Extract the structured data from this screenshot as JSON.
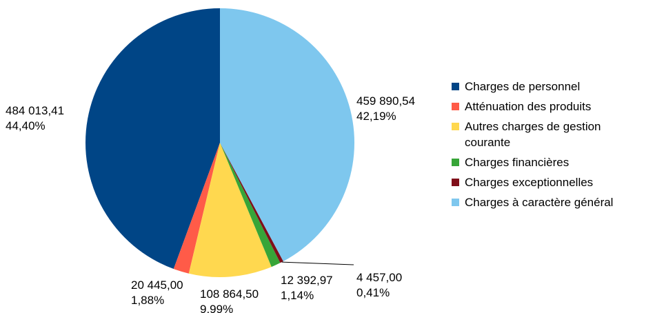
{
  "chart_data": {
    "type": "pie",
    "title": "",
    "legend_position": "right",
    "slices": [
      {
        "name": "Charges de personnel",
        "value": 484013.41,
        "value_label": "484 013,41",
        "percent_label": "44,40%",
        "color": "#004586"
      },
      {
        "name": "Atténuation des produits",
        "value": 20445.0,
        "value_label": "20 445,00",
        "percent_label": "1,88%",
        "color": "#ff5b48"
      },
      {
        "name": "Autres charges de gestion courante",
        "value": 108864.5,
        "value_label": "108 864,50",
        "percent_label": "9,99%",
        "color": "#ffd84f"
      },
      {
        "name": "Charges financières",
        "value": 12392.97,
        "value_label": "12 392,97",
        "percent_label": "1,14%",
        "color": "#37a538"
      },
      {
        "name": "Charges exceptionnelles",
        "value": 4457.0,
        "value_label": "4 457,00",
        "percent_label": "0,41%",
        "color": "#800f1a"
      },
      {
        "name": "Charges à caractère général",
        "value": 459890.54,
        "value_label": "459 890,54",
        "percent_label": "42,19%",
        "color": "#7ec7ee"
      }
    ],
    "legend": [
      {
        "lines": [
          "Charges de personnel"
        ],
        "color": "#004586"
      },
      {
        "lines": [
          "Atténuation des produits"
        ],
        "color": "#ff5b48"
      },
      {
        "lines": [
          "Autres charges de gestion",
          "courante"
        ],
        "color": "#ffd84f"
      },
      {
        "lines": [
          "Charges financières"
        ],
        "color": "#37a538"
      },
      {
        "lines": [
          "Charges exceptionnelles"
        ],
        "color": "#800f1a"
      },
      {
        "lines": [
          "Charges à caractère général"
        ],
        "color": "#7ec7ee"
      }
    ]
  }
}
